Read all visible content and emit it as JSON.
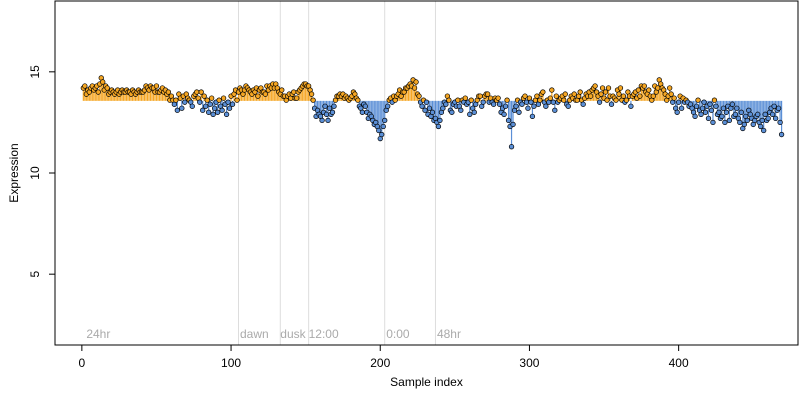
{
  "chart_data": {
    "type": "scatter",
    "xlabel": "Sample index",
    "ylabel": "Expression",
    "xlim": [
      -18,
      480
    ],
    "ylim": [
      1.5,
      18.5
    ],
    "x_ticks": [
      0,
      100,
      200,
      300,
      400
    ],
    "y_ticks": [
      5,
      10,
      15
    ],
    "grid": false,
    "legend": "none",
    "colors": {
      "point_high": "#f5a623",
      "point_low": "#5b8fd6",
      "point_outline": "#000000",
      "segment_high": "#f5a623",
      "segment_low": "#5b8fd6",
      "divider": "#dddddd",
      "annotation_text": "#aaaaaa",
      "axis": "#000000"
    },
    "annotations": [
      {
        "x": 3,
        "label": "24hr"
      },
      {
        "x": 106,
        "label": "dawn"
      },
      {
        "x": 133,
        "label": "dusk"
      },
      {
        "x": 152,
        "label": "12:00"
      },
      {
        "x": 204,
        "label": "0:00"
      },
      {
        "x": 238,
        "label": "48hr"
      }
    ],
    "dividers": [
      105,
      133,
      152,
      203,
      237
    ],
    "series": [
      {
        "role": "expression",
        "y": [
          14.2,
          14.3,
          13.9,
          14.1,
          14.0,
          14.2,
          14.3,
          14.1,
          14.2,
          14.3,
          14.0,
          14.4,
          14.7,
          14.5,
          14.1,
          14.3,
          14.2,
          13.9,
          14.0,
          14.1,
          14.0,
          13.9,
          14.0,
          14.1,
          13.9,
          14.0,
          14.1,
          14.0,
          14.0,
          14.1,
          14.0,
          14.0,
          13.9,
          14.1,
          14.0,
          13.9,
          14.0,
          14.1,
          14.0,
          14.0,
          14.0,
          14.1,
          14.3,
          14.2,
          14.1,
          14.3,
          14.2,
          14.2,
          14.0,
          14.3,
          14.0,
          14.0,
          14.1,
          14.2,
          14.0,
          14.1,
          13.9,
          14.0,
          13.6,
          13.8,
          13.6,
          13.4,
          13.6,
          13.1,
          13.9,
          13.7,
          13.2,
          13.8,
          13.5,
          13.9,
          13.7,
          13.6,
          13.5,
          13.3,
          13.8,
          13.9,
          14.0,
          13.7,
          13.5,
          14.0,
          13.1,
          13.8,
          13.3,
          13.6,
          13.0,
          13.4,
          13.7,
          12.9,
          13.2,
          13.5,
          13.0,
          13.6,
          13.3,
          13.1,
          13.7,
          13.4,
          12.9,
          13.5,
          13.2,
          13.8,
          13.4,
          13.9,
          14.1,
          13.6,
          14.0,
          14.2,
          14.1,
          13.9,
          14.1,
          14.3,
          14.2,
          14.1,
          14.0,
          13.9,
          14.1,
          14.0,
          14.2,
          13.8,
          14.1,
          14.2,
          14.0,
          14.0,
          13.9,
          14.3,
          14.1,
          14.3,
          14.2,
          14.4,
          14.2,
          14.4,
          14.2,
          14.0,
          13.9,
          14.1,
          13.8,
          13.8,
          13.6,
          13.8,
          13.9,
          13.7,
          13.9,
          14.0,
          13.7,
          13.7,
          14.0,
          14.1,
          14.2,
          14.3,
          14.4,
          14.4,
          14.3,
          14.3,
          14.1,
          13.9,
          13.6,
          13.2,
          12.8,
          13.1,
          12.9,
          12.8,
          12.6,
          13.0,
          13.3,
          12.9,
          12.6,
          13.2,
          12.9,
          13.0,
          13.3,
          13.6,
          13.8,
          13.8,
          13.9,
          13.8,
          13.9,
          13.7,
          13.8,
          13.7,
          13.6,
          13.7,
          13.8,
          14.0,
          13.9,
          13.7,
          13.6,
          13.3,
          13.2,
          13.0,
          13.4,
          13.3,
          13.0,
          12.7,
          12.9,
          12.8,
          12.6,
          12.4,
          12.5,
          12.3,
          12.1,
          11.7,
          11.9,
          12.3,
          12.6,
          13.1,
          13.3,
          13.6,
          13.7,
          13.5,
          13.8,
          13.6,
          13.8,
          13.9,
          14.1,
          13.8,
          14.0,
          14.0,
          14.2,
          14.2,
          14.3,
          14.4,
          14.3,
          14.6,
          14.2,
          14.5,
          13.9,
          13.8,
          13.5,
          13.3,
          13.6,
          13.1,
          13.5,
          12.9,
          13.2,
          12.8,
          13.0,
          12.6,
          12.7,
          12.5,
          12.3,
          12.6,
          13.0,
          13.2,
          13.5,
          13.4,
          13.8,
          13.6,
          13.1,
          13.0,
          13.4,
          13.5,
          13.3,
          13.6,
          13.3,
          13.1,
          13.6,
          13.5,
          13.7,
          13.4,
          13.5,
          12.9,
          13.6,
          13.2,
          13.0,
          13.4,
          13.6,
          13.8,
          13.8,
          13.3,
          13.5,
          13.8,
          13.9,
          13.9,
          13.5,
          13.7,
          13.5,
          13.4,
          13.7,
          13.6,
          13.7,
          13.4,
          13.0,
          13.2,
          12.9,
          13.3,
          13.6,
          12.6,
          12.3,
          11.3,
          12.4,
          13.1,
          13.3,
          13.6,
          13.0,
          13.5,
          13.4,
          13.7,
          13.8,
          13.5,
          13.2,
          13.7,
          13.5,
          12.8,
          13.3,
          13.6,
          13.8,
          13.4,
          13.6,
          13.9,
          14.0,
          13.5,
          13.3,
          13.6,
          13.5,
          13.7,
          14.1,
          13.5,
          13.1,
          13.8,
          13.5,
          13.6,
          13.7,
          13.8,
          13.6,
          13.9,
          13.4,
          13.3,
          13.6,
          13.8,
          13.7,
          13.9,
          13.6,
          13.6,
          13.8,
          14.0,
          13.6,
          13.4,
          13.7,
          13.9,
          13.8,
          14.0,
          13.8,
          14.1,
          14.2,
          14.3,
          14.0,
          13.8,
          13.5,
          13.9,
          14.2,
          13.7,
          14.0,
          13.6,
          14.2,
          13.8,
          13.4,
          13.8,
          13.7,
          13.6,
          14.1,
          13.9,
          14.2,
          13.6,
          13.8,
          13.5,
          13.6,
          14.0,
          13.8,
          13.3,
          13.8,
          13.9,
          14.0,
          13.7,
          14.1,
          13.8,
          14.3,
          14.2,
          14.3,
          14.0,
          13.9,
          14.1,
          13.8,
          13.6,
          13.8,
          14.3,
          14.0,
          14.2,
          14.6,
          14.4,
          14.2,
          14.1,
          13.9,
          13.6,
          13.8,
          14.2,
          13.9,
          13.5,
          13.7,
          13.2,
          13.0,
          13.5,
          13.8,
          13.2,
          13.7,
          13.5,
          13.6,
          13.5,
          13.3,
          13.4,
          13.2,
          13.0,
          12.8,
          13.3,
          13.6,
          13.1,
          12.9,
          13.2,
          13.5,
          13.0,
          13.3,
          12.7,
          13.4,
          13.1,
          12.5,
          13.6,
          13.3,
          12.9,
          13.0,
          12.7,
          12.8,
          13.2,
          12.5,
          13.0,
          13.3,
          12.6,
          13.2,
          13.4,
          12.8,
          12.9,
          13.2,
          12.7,
          12.5,
          13.0,
          12.2,
          12.4,
          12.8,
          12.6,
          13.1,
          12.9,
          12.7,
          12.4,
          12.6,
          12.8,
          12.9,
          12.5,
          12.3,
          12.6,
          12.1,
          12.9,
          12.6,
          12.7,
          13.0,
          13.2,
          12.9,
          13.3,
          12.7,
          13.1,
          13.2,
          12.5,
          11.9
        ]
      }
    ]
  }
}
